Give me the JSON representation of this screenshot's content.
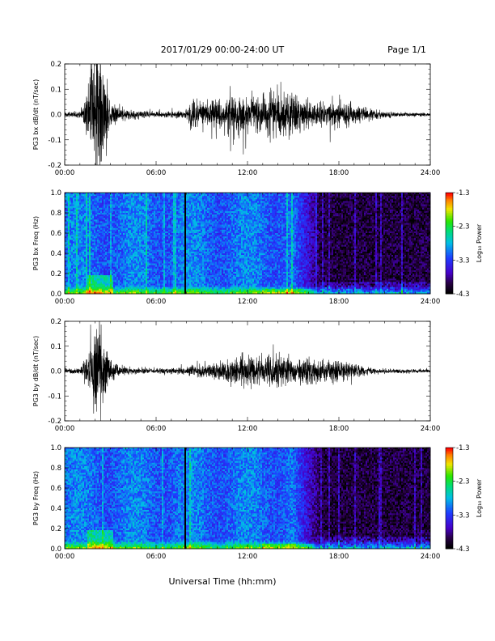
{
  "header": {
    "date_range": "2017/01/29  00:00-24:00 UT",
    "page": "Page 1/1"
  },
  "x_axis": {
    "label": "Universal Time (hh:mm)",
    "ticks": [
      "00:00",
      "06:00",
      "12:00",
      "18:00",
      "24:00"
    ],
    "range_hours": [
      0,
      24
    ]
  },
  "colorbar": {
    "label": "Log₁₀ Power",
    "ticks": [
      "-1.3",
      "-2.3",
      "-3.3",
      "-4.3"
    ],
    "range": [
      -4.3,
      -1.3
    ]
  },
  "chart_data": [
    {
      "type": "line",
      "ylabel": "PG3 bx dB/dt (nT/sec)",
      "ylim": [
        -0.2,
        0.2
      ],
      "yticks": [
        "0.2",
        "0.1",
        "0.0",
        "-0.1",
        "-0.2"
      ],
      "envelope_hours": [
        0,
        1,
        1.5,
        1.8,
        2.0,
        2.3,
        2.6,
        3.0,
        4,
        5,
        6,
        7,
        7.9,
        8.2,
        9,
        10,
        11,
        12,
        13,
        14,
        15,
        16,
        17,
        18,
        19,
        20,
        21,
        22,
        23,
        24
      ],
      "envelope_amplitude": [
        0.008,
        0.012,
        0.08,
        0.22,
        0.22,
        0.22,
        0.18,
        0.04,
        0.015,
        0.012,
        0.01,
        0.012,
        0.01,
        0.05,
        0.045,
        0.05,
        0.07,
        0.055,
        0.06,
        0.08,
        0.065,
        0.045,
        0.04,
        0.05,
        0.035,
        0.02,
        0.01,
        0.008,
        0.007,
        0.006
      ]
    },
    {
      "type": "heatmap",
      "ylabel": "PG3 bx Freq (Hz)",
      "ylim": [
        0,
        1
      ],
      "yticks": [
        "1.0",
        "0.8",
        "0.6",
        "0.4",
        "0.2",
        "0.0"
      ],
      "zlim": [
        -4.3,
        -1.3
      ],
      "zlabel": "Log₁₀ Power",
      "data_gap_hours": 7.9
    },
    {
      "type": "line",
      "ylabel": "PG3 by dB/dt (nT/sec)",
      "ylim": [
        -0.2,
        0.2
      ],
      "yticks": [
        "0.2",
        "0.1",
        "0.0",
        "-0.1",
        "-0.2"
      ],
      "envelope_hours": [
        0,
        1,
        1.5,
        1.8,
        2.0,
        2.3,
        2.6,
        3.0,
        4,
        5,
        6,
        7,
        7.9,
        8.2,
        9,
        10,
        11,
        12,
        13,
        14,
        15,
        16,
        17,
        18,
        19,
        20,
        21,
        22,
        23,
        24
      ],
      "envelope_amplitude": [
        0.008,
        0.01,
        0.05,
        0.14,
        0.2,
        0.15,
        0.09,
        0.035,
        0.015,
        0.012,
        0.01,
        0.01,
        0.012,
        0.02,
        0.02,
        0.03,
        0.045,
        0.05,
        0.05,
        0.06,
        0.045,
        0.05,
        0.04,
        0.04,
        0.025,
        0.012,
        0.008,
        0.007,
        0.007,
        0.006
      ]
    },
    {
      "type": "heatmap",
      "ylabel": "PG3 by Freq (Hz)",
      "ylim": [
        0,
        1
      ],
      "yticks": [
        "1.0",
        "0.8",
        "0.6",
        "0.4",
        "0.2",
        "0.0"
      ],
      "zlim": [
        -4.3,
        -1.3
      ],
      "zlabel": "Log₁₀ Power",
      "data_gap_hours": 7.9
    }
  ]
}
